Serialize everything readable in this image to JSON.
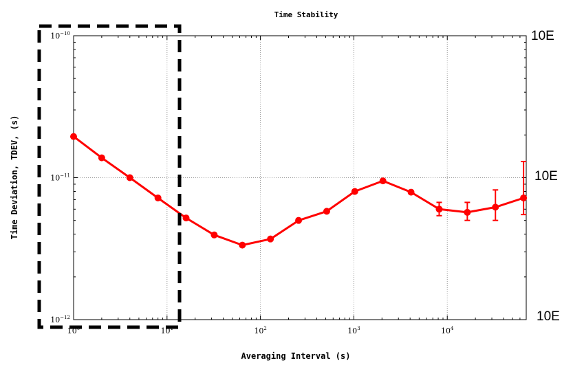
{
  "chart_data": {
    "type": "line",
    "title": "Time Stability",
    "xlabel": "Averaging Interval (s)",
    "ylabel": "Time Deviation, TDEV, (s)",
    "xscale": "log",
    "yscale": "log",
    "xlim": [
      1,
      70000
    ],
    "ylim": [
      1e-12,
      1e-10
    ],
    "grid": true,
    "color": "#ff0000",
    "x_ticks": [
      {
        "value": 1,
        "base": "10",
        "exp": "0"
      },
      {
        "value": 10,
        "base": "10",
        "exp": "1"
      },
      {
        "value": 100,
        "base": "10",
        "exp": "2"
      },
      {
        "value": 1000,
        "base": "10",
        "exp": "3"
      },
      {
        "value": 10000,
        "base": "10",
        "exp": "4"
      }
    ],
    "y_ticks": [
      {
        "value": 1e-12,
        "base": "10",
        "exp": "−12"
      },
      {
        "value": 1e-11,
        "base": "10",
        "exp": "−11"
      },
      {
        "value": 1e-10,
        "base": "10",
        "exp": "−10"
      }
    ],
    "right_labels": [
      "10E",
      "10E",
      "10E"
    ],
    "highlight_box": {
      "x_range": [
        1,
        12
      ],
      "style": "dashed"
    },
    "series": [
      {
        "points": [
          {
            "x": 1,
            "y": 1.95e-11
          },
          {
            "x": 2,
            "y": 1.38e-11
          },
          {
            "x": 4,
            "y": 1e-11
          },
          {
            "x": 8,
            "y": 7.2e-12
          },
          {
            "x": 16,
            "y": 5.2e-12
          },
          {
            "x": 32,
            "y": 3.95e-12
          },
          {
            "x": 64,
            "y": 3.35e-12
          },
          {
            "x": 128,
            "y": 3.7e-12
          },
          {
            "x": 256,
            "y": 5e-12
          },
          {
            "x": 512,
            "y": 5.8e-12
          },
          {
            "x": 1024,
            "y": 8e-12
          },
          {
            "x": 2048,
            "y": 9.5e-12
          },
          {
            "x": 4096,
            "y": 7.9e-12
          },
          {
            "x": 8192,
            "y": 6e-12,
            "err_low": 5.4e-12,
            "err_high": 6.7e-12
          },
          {
            "x": 16384,
            "y": 5.7e-12,
            "err_low": 5e-12,
            "err_high": 6.7e-12
          },
          {
            "x": 32768,
            "y": 6.2e-12,
            "err_low": 5e-12,
            "err_high": 8.2e-12
          },
          {
            "x": 65536,
            "y": 7.2e-12,
            "err_low": 5.5e-12,
            "err_high": 1.3e-11
          }
        ]
      }
    ]
  }
}
